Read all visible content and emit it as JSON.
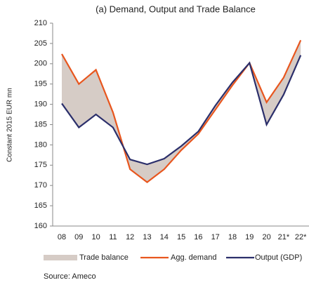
{
  "chart_data": {
    "type": "line",
    "title": "(a) Demand, Output and Trade Balance",
    "y_label": "Constant 2015 EUR mn",
    "categories": [
      "08",
      "09",
      "10",
      "11",
      "12",
      "13",
      "14",
      "15",
      "16",
      "17",
      "18",
      "19",
      "20",
      "21*",
      "22*"
    ],
    "area_between": {
      "name": "Trade balance",
      "color": "#d6ccc6"
    },
    "series": [
      {
        "name": "Agg. demand",
        "color": "#e8561e",
        "values": [
          202.4,
          195,
          198.5,
          188,
          174,
          170.8,
          174,
          178.7,
          182.7,
          188.7,
          194.7,
          200.2,
          190.5,
          196.6,
          205.8
        ]
      },
      {
        "name": "Output (GDP)",
        "color": "#2b2f6b",
        "values": [
          190.2,
          184.3,
          187.5,
          184.3,
          176.4,
          175.2,
          176.6,
          179.7,
          183.3,
          189.7,
          195.4,
          200.2,
          185,
          192.4,
          202.1
        ]
      }
    ],
    "ylim": [
      160,
      210
    ],
    "yticks": [
      160,
      165,
      170,
      175,
      180,
      185,
      190,
      195,
      200,
      205,
      210
    ],
    "source": "Source: Ameco"
  }
}
